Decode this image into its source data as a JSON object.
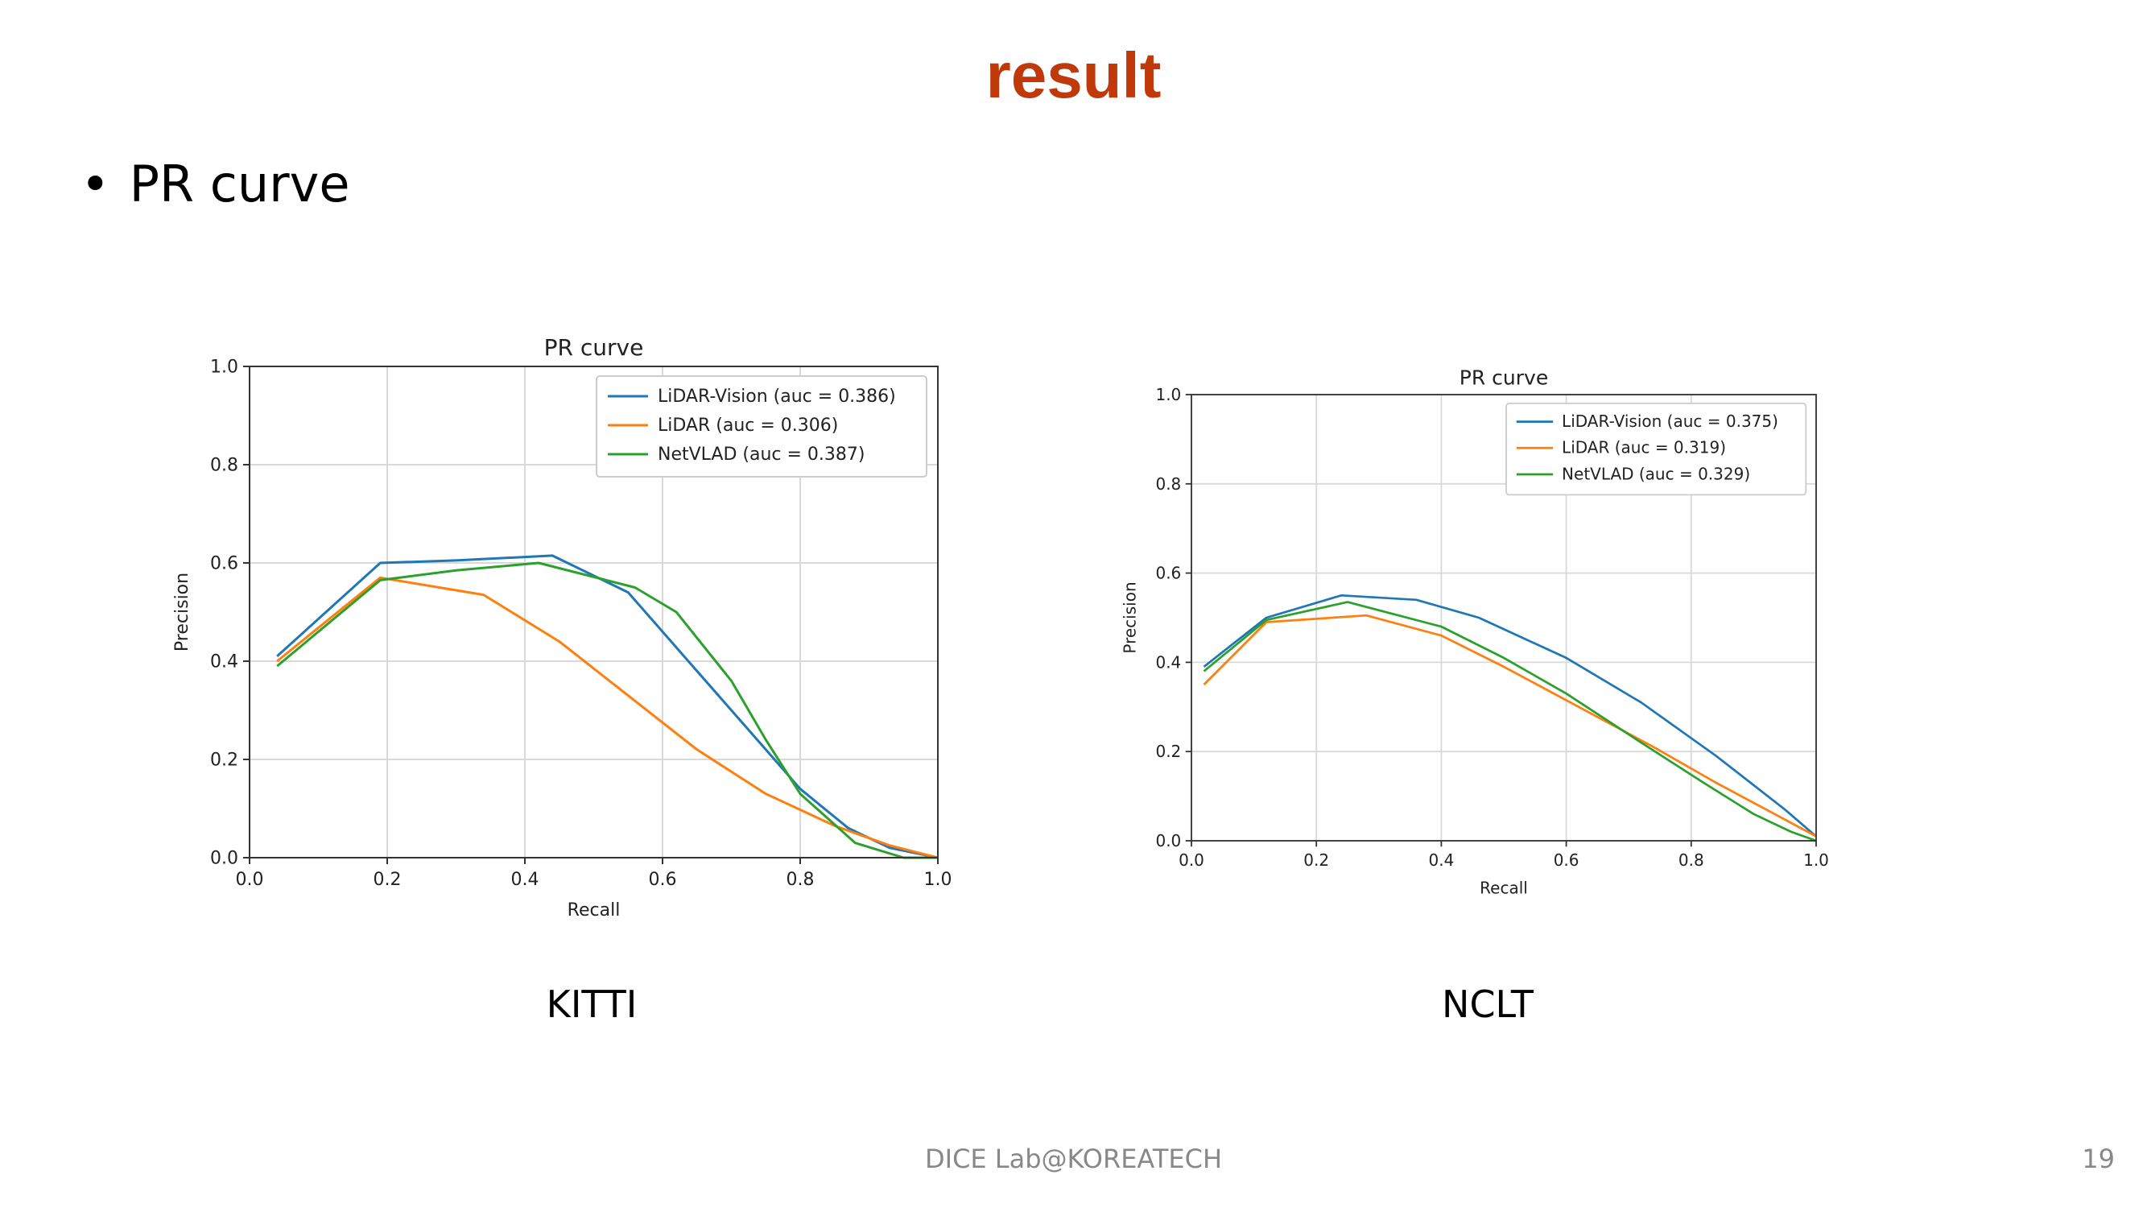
{
  "slide": {
    "title": "result",
    "bullet_glyph": "•",
    "bullet": "PR curve",
    "footer": "DICE  Lab@KOREATECH",
    "page_number": "19"
  },
  "captions": [
    "KITTI",
    "NCLT"
  ],
  "colors": {
    "title": "#c0390b",
    "blue": "#1f77b4",
    "orange": "#ff7f0e",
    "green": "#2ca02c"
  },
  "chart_data": [
    {
      "type": "line",
      "title": "PR curve",
      "xlabel": "Recall",
      "ylabel": "Precision",
      "xlim": [
        0.0,
        1.0
      ],
      "ylim": [
        0.0,
        1.0
      ],
      "xticks": [
        "0.0",
        "0.2",
        "0.4",
        "0.6",
        "0.8",
        "1.0"
      ],
      "yticks": [
        "0.0",
        "0.2",
        "0.4",
        "0.6",
        "0.8",
        "1.0"
      ],
      "grid": true,
      "legend_position": "top-right",
      "series": [
        {
          "name": "LiDAR-Vision (auc = 0.386)",
          "color": "#1f77b4",
          "x": [
            0.04,
            0.19,
            0.3,
            0.44,
            0.55,
            0.65,
            0.75,
            0.8,
            0.87,
            0.93,
            1.0
          ],
          "y": [
            0.41,
            0.6,
            0.605,
            0.615,
            0.54,
            0.38,
            0.22,
            0.14,
            0.06,
            0.02,
            0.0
          ]
        },
        {
          "name": "LiDAR (auc = 0.306)",
          "color": "#ff7f0e",
          "x": [
            0.04,
            0.19,
            0.34,
            0.45,
            0.55,
            0.65,
            0.75,
            0.85,
            0.93,
            1.0
          ],
          "y": [
            0.4,
            0.57,
            0.535,
            0.44,
            0.33,
            0.22,
            0.13,
            0.065,
            0.025,
            0.0
          ]
        },
        {
          "name": "NetVLAD (auc = 0.387)",
          "color": "#2ca02c",
          "x": [
            0.04,
            0.19,
            0.3,
            0.42,
            0.56,
            0.62,
            0.7,
            0.75,
            0.8,
            0.88,
            0.95,
            1.0
          ],
          "y": [
            0.39,
            0.565,
            0.585,
            0.6,
            0.55,
            0.5,
            0.36,
            0.24,
            0.13,
            0.03,
            0.0,
            0.0
          ]
        }
      ]
    },
    {
      "type": "line",
      "title": "PR curve",
      "xlabel": "Recall",
      "ylabel": "Precision",
      "xlim": [
        0.0,
        1.0
      ],
      "ylim": [
        0.0,
        1.0
      ],
      "xticks": [
        "0.0",
        "0.2",
        "0.4",
        "0.6",
        "0.8",
        "1.0"
      ],
      "yticks": [
        "0.0",
        "0.2",
        "0.4",
        "0.6",
        "0.8",
        "1.0"
      ],
      "grid": true,
      "legend_position": "top-right",
      "series": [
        {
          "name": "LiDAR-Vision (auc = 0.375)",
          "color": "#1f77b4",
          "x": [
            0.02,
            0.12,
            0.24,
            0.36,
            0.46,
            0.6,
            0.72,
            0.84,
            0.95,
            1.0
          ],
          "y": [
            0.39,
            0.5,
            0.55,
            0.54,
            0.5,
            0.41,
            0.31,
            0.19,
            0.07,
            0.01
          ]
        },
        {
          "name": "LiDAR (auc = 0.319)",
          "color": "#ff7f0e",
          "x": [
            0.02,
            0.12,
            0.28,
            0.4,
            0.5,
            0.62,
            0.74,
            0.84,
            0.92,
            1.0
          ],
          "y": [
            0.35,
            0.49,
            0.505,
            0.46,
            0.39,
            0.3,
            0.21,
            0.13,
            0.07,
            0.01
          ]
        },
        {
          "name": "NetVLAD (auc = 0.329)",
          "color": "#2ca02c",
          "x": [
            0.02,
            0.12,
            0.25,
            0.4,
            0.5,
            0.6,
            0.72,
            0.82,
            0.9,
            0.96,
            1.0
          ],
          "y": [
            0.38,
            0.495,
            0.535,
            0.48,
            0.41,
            0.33,
            0.22,
            0.13,
            0.06,
            0.02,
            0.0
          ]
        }
      ]
    }
  ]
}
